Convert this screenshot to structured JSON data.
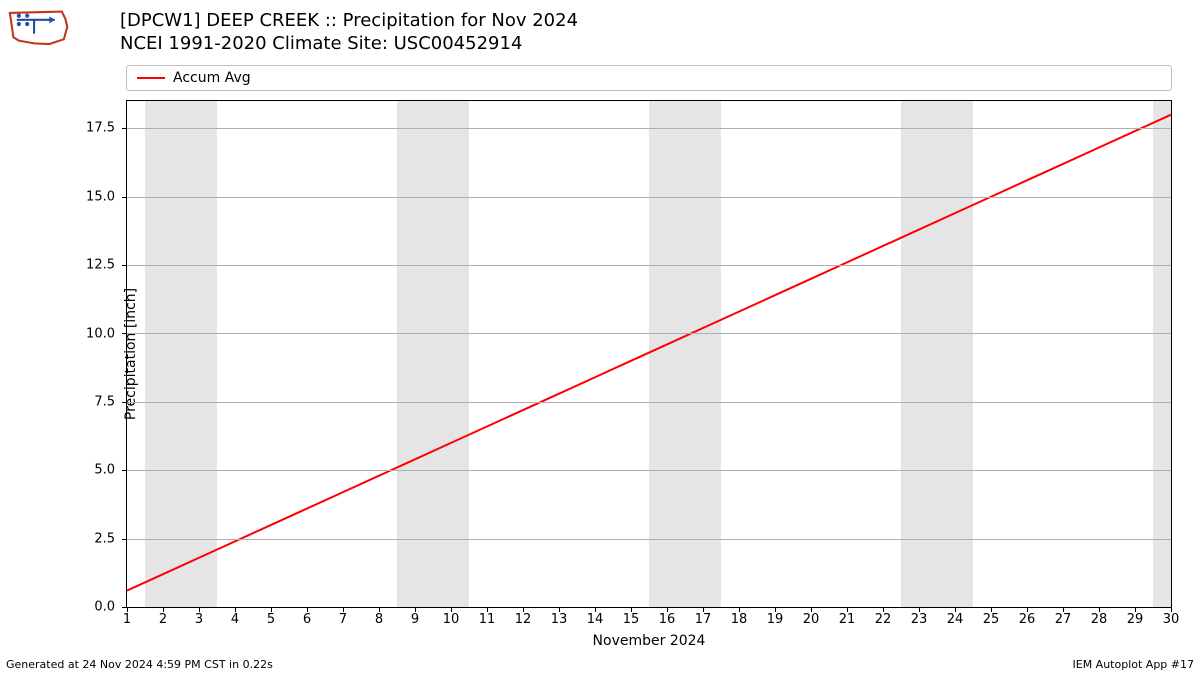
{
  "logo": {
    "outline_color": "#c1351d",
    "arrow_color": "#1e4fa3"
  },
  "title": {
    "line1": "[DPCW1] DEEP CREEK :: Precipitation for Nov 2024",
    "line2": "NCEI 1991-2020 Climate Site: USC00452914",
    "fontsize": 18
  },
  "legend": {
    "items": [
      {
        "label": "Accum Avg",
        "color": "#ff0000"
      }
    ],
    "border_color": "#bfbfbf"
  },
  "chart": {
    "type": "line",
    "background_color": "#ffffff",
    "grid_color": "#b0b0b0",
    "weekend_band_color": "#e5e5e5",
    "line_color": "#ff0000",
    "line_width": 2,
    "xlabel": "November 2024",
    "ylabel": "Precipitation [inch]",
    "xlim": [
      1,
      30
    ],
    "ylim": [
      0,
      18.5
    ],
    "xticks": [
      1,
      2,
      3,
      4,
      5,
      6,
      7,
      8,
      9,
      10,
      11,
      12,
      13,
      14,
      15,
      16,
      17,
      18,
      19,
      20,
      21,
      22,
      23,
      24,
      25,
      26,
      27,
      28,
      29,
      30
    ],
    "yticks": [
      0.0,
      2.5,
      5.0,
      7.5,
      10.0,
      12.5,
      15.0,
      17.5
    ],
    "ytick_labels": [
      "0.0",
      "2.5",
      "5.0",
      "7.5",
      "10.0",
      "12.5",
      "15.0",
      "17.5"
    ],
    "weekend_bands": [
      [
        2,
        3
      ],
      [
        9,
        10
      ],
      [
        16,
        17
      ],
      [
        23,
        24
      ],
      [
        30,
        30
      ]
    ],
    "x": [
      1,
      2,
      3,
      4,
      5,
      6,
      7,
      8,
      9,
      10,
      11,
      12,
      13,
      14,
      15,
      16,
      17,
      18,
      19,
      20,
      21,
      22,
      23,
      24,
      25,
      26,
      27,
      28,
      29,
      30
    ],
    "y": [
      0.6,
      1.2,
      1.8,
      2.4,
      3.0,
      3.6,
      4.2,
      4.8,
      5.4,
      6.0,
      6.6,
      7.2,
      7.8,
      8.4,
      9.0,
      9.6,
      10.2,
      10.8,
      11.4,
      12.0,
      12.6,
      13.2,
      13.8,
      14.4,
      15.0,
      15.6,
      16.2,
      16.8,
      17.4,
      18.0
    ]
  },
  "footer": {
    "left": "Generated at 24 Nov 2024 4:59 PM CST in 0.22s",
    "right": "IEM Autoplot App #17"
  }
}
